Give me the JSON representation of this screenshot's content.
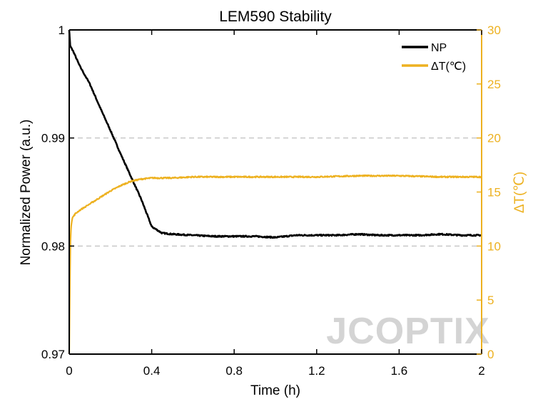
{
  "chart_data": {
    "type": "line",
    "title": "LEM590 Stability",
    "xlabel": "Time (h)",
    "ylabel": "Normalized Power (a.u.)",
    "y2label": "ΔT(℃)",
    "xlim": [
      0,
      2
    ],
    "ylim": [
      0.97,
      1.0
    ],
    "y2lim": [
      0,
      30
    ],
    "xticks": [
      "0",
      "0.4",
      "0.8",
      "1.2",
      "1.6",
      "2"
    ],
    "xtick_values": [
      0,
      0.4,
      0.8,
      1.2,
      1.6,
      2
    ],
    "yticks": [
      "0.97",
      "0.98",
      "0.99",
      "1"
    ],
    "ytick_values": [
      0.97,
      0.98,
      0.99,
      1.0
    ],
    "y2ticks": [
      "0",
      "5",
      "10",
      "15",
      "20",
      "25",
      "30"
    ],
    "y2tick_values": [
      0,
      5,
      10,
      15,
      20,
      25,
      30
    ],
    "grid": "dashed horizontal at 0.98 and 0.99",
    "legend_position": "top-right",
    "series": [
      {
        "name": "NP",
        "axis": "left",
        "color": "#000000",
        "x": [
          0,
          0.005,
          0.02,
          0.05,
          0.1,
          0.15,
          0.2,
          0.25,
          0.3,
          0.35,
          0.38,
          0.4,
          0.45,
          0.5,
          0.6,
          0.7,
          0.8,
          0.9,
          1.0,
          1.1,
          1.2,
          1.3,
          1.4,
          1.5,
          1.6,
          1.7,
          1.8,
          1.9,
          2.0
        ],
        "values": [
          1.0,
          0.9985,
          0.998,
          0.9967,
          0.995,
          0.9928,
          0.9907,
          0.9885,
          0.9864,
          0.9843,
          0.9828,
          0.9818,
          0.9812,
          0.9811,
          0.981,
          0.9809,
          0.9809,
          0.9809,
          0.9808,
          0.981,
          0.981,
          0.981,
          0.9811,
          0.981,
          0.981,
          0.981,
          0.9811,
          0.981,
          0.981
        ]
      },
      {
        "name": "ΔT(℃)",
        "axis": "right",
        "color": "#EDB120",
        "x": [
          0,
          0.003,
          0.006,
          0.01,
          0.015,
          0.03,
          0.05,
          0.1,
          0.15,
          0.2,
          0.25,
          0.3,
          0.35,
          0.4,
          0.5,
          0.6,
          0.8,
          1.0,
          1.2,
          1.4,
          1.6,
          1.8,
          2.0
        ],
        "values": [
          0,
          6.0,
          10.5,
          12.0,
          12.6,
          13.0,
          13.3,
          13.9,
          14.5,
          15.1,
          15.6,
          16.0,
          16.2,
          16.3,
          16.3,
          16.4,
          16.4,
          16.4,
          16.4,
          16.5,
          16.5,
          16.4,
          16.4
        ]
      }
    ]
  },
  "watermark": "JCOPTIX"
}
